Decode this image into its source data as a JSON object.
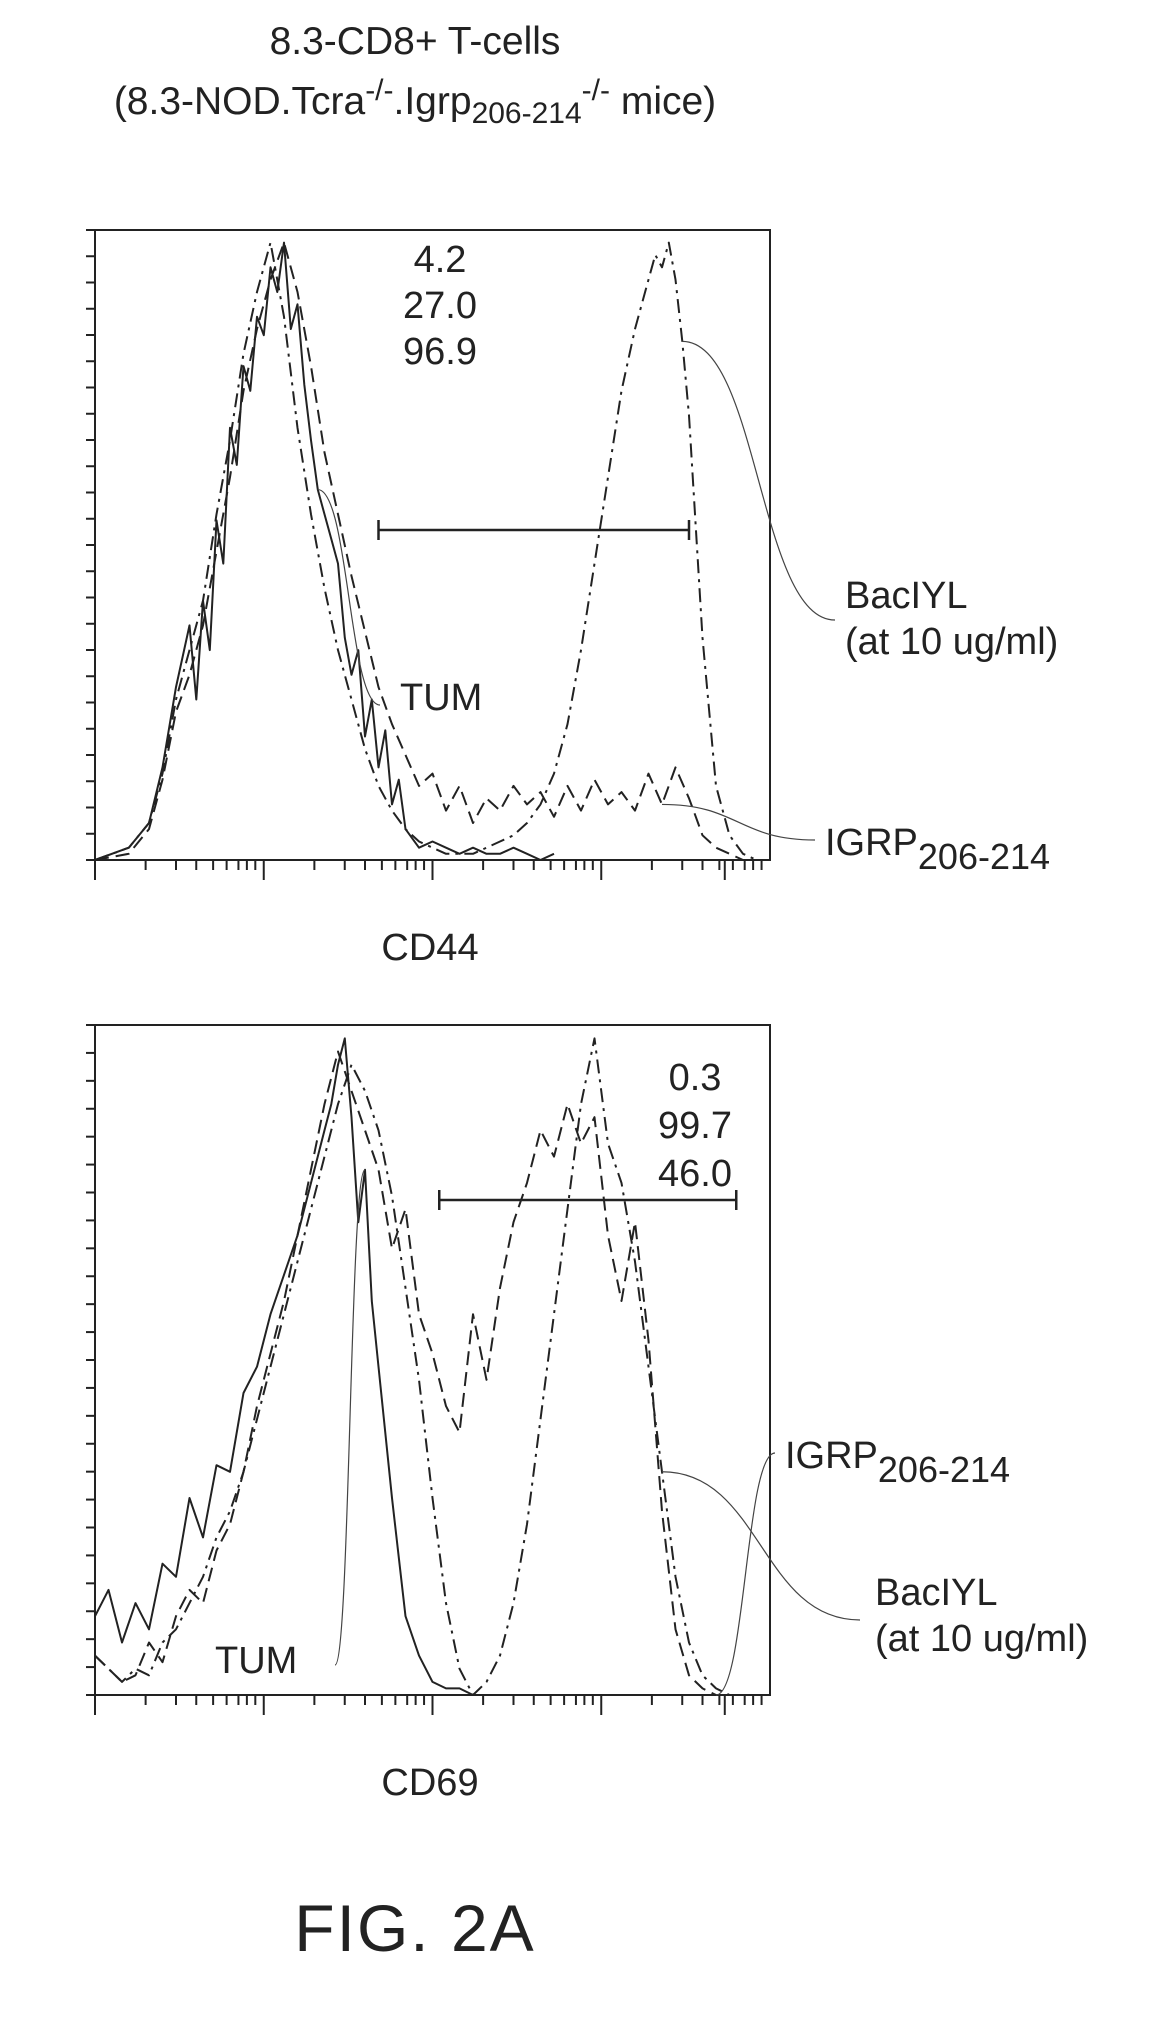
{
  "title": {
    "line1": "8.3-CD8+ T-cells",
    "line2_pre": "(8.3-NOD.Tcra",
    "line2_sup1": "-/-",
    "line2_mid": ".Igrp",
    "line2_sub": "206-214",
    "line2_sup2": "-/-",
    "line2_post": " mice)"
  },
  "figure_label": "FIG. 2A",
  "chart_data": [
    {
      "type": "line",
      "xlabel": "CD44",
      "ylabel": "",
      "xlim": [
        0,
        100
      ],
      "ylim": [
        0,
        100
      ],
      "percentages": [
        "4.2",
        "27.0",
        "96.9"
      ],
      "gate": [
        42,
        88
      ],
      "series": [
        {
          "name": "TUM",
          "style": "solid",
          "x": [
            0,
            5,
            8,
            10,
            12,
            14,
            15,
            16,
            17,
            18,
            19,
            20,
            21,
            22,
            23,
            24,
            25,
            26,
            27,
            28,
            29,
            30,
            31,
            32,
            33,
            34,
            35,
            36,
            37,
            38,
            39,
            40,
            41,
            42,
            43,
            44,
            45,
            46,
            48,
            50,
            52,
            54,
            56,
            58,
            60,
            62,
            64,
            66,
            68
          ],
          "y": [
            0,
            2,
            6,
            15,
            28,
            38,
            26,
            42,
            34,
            55,
            48,
            70,
            64,
            80,
            76,
            88,
            85,
            96,
            92,
            100,
            86,
            90,
            77,
            68,
            60,
            56,
            52,
            48,
            36,
            30,
            34,
            20,
            26,
            15,
            21,
            9,
            13,
            5,
            2,
            3,
            2,
            1,
            2,
            1,
            1,
            2,
            1,
            0,
            1
          ]
        },
        {
          "name": "IGRP",
          "label": "IGRP",
          "label_sub": "206-214",
          "style": "dashed",
          "x": [
            0,
            5,
            8,
            10,
            12,
            14,
            16,
            18,
            20,
            22,
            24,
            26,
            28,
            30,
            32,
            34,
            36,
            38,
            40,
            42,
            44,
            46,
            48,
            50,
            52,
            54,
            56,
            58,
            60,
            62,
            64,
            66,
            68,
            70,
            72,
            74,
            76,
            78,
            80,
            82,
            84,
            85,
            86,
            88,
            89,
            90,
            92,
            94,
            96
          ],
          "y": [
            0,
            1,
            5,
            13,
            24,
            30,
            38,
            50,
            62,
            76,
            86,
            94,
            100,
            92,
            80,
            66,
            56,
            46,
            37,
            28,
            22,
            17,
            12,
            14,
            8,
            12,
            6,
            10,
            8,
            12,
            9,
            11,
            7,
            12,
            8,
            13,
            9,
            11,
            8,
            14,
            9,
            12,
            15,
            10,
            7,
            4,
            2,
            1,
            0
          ]
        },
        {
          "name": "BacIYL",
          "label": "BacIYL",
          "label2": "(at 10 ug/ml)",
          "style": "dashdot",
          "x": [
            0,
            5,
            8,
            10,
            12,
            14,
            16,
            18,
            20,
            22,
            24,
            26,
            28,
            30,
            32,
            34,
            36,
            38,
            40,
            42,
            44,
            46,
            48,
            50,
            52,
            54,
            56,
            58,
            60,
            62,
            64,
            66,
            68,
            70,
            72,
            74,
            76,
            78,
            80,
            82,
            83,
            84,
            85,
            86,
            87,
            88,
            90,
            92,
            94,
            96,
            98
          ],
          "y": [
            0,
            2,
            6,
            14,
            26,
            34,
            42,
            56,
            68,
            82,
            92,
            100,
            88,
            70,
            56,
            44,
            34,
            26,
            18,
            12,
            8,
            5,
            3,
            2,
            1,
            1,
            1,
            2,
            3,
            4,
            6,
            9,
            14,
            22,
            34,
            48,
            62,
            76,
            86,
            94,
            98,
            96,
            100,
            94,
            84,
            72,
            36,
            12,
            4,
            1,
            0
          ]
        }
      ]
    },
    {
      "type": "line",
      "xlabel": "CD69",
      "ylabel": "",
      "xlim": [
        0,
        100
      ],
      "ylim": [
        0,
        100
      ],
      "percentages": [
        "0.3",
        "99.7",
        "46.0"
      ],
      "gate": [
        51,
        95
      ],
      "series": [
        {
          "name": "TUM",
          "label": "TUM",
          "style": "solid",
          "x": [
            0,
            2,
            4,
            6,
            8,
            10,
            12,
            14,
            16,
            18,
            20,
            22,
            24,
            26,
            28,
            30,
            32,
            34,
            35,
            36,
            37,
            38,
            39,
            40,
            41,
            42,
            44,
            46,
            48,
            50,
            52,
            54,
            56,
            58
          ],
          "y": [
            12,
            16,
            8,
            14,
            10,
            20,
            18,
            30,
            24,
            35,
            34,
            46,
            50,
            58,
            64,
            70,
            78,
            86,
            90,
            96,
            100,
            88,
            72,
            80,
            60,
            50,
            30,
            12,
            6,
            2,
            1,
            1,
            0,
            0
          ]
        },
        {
          "name": "IGRP",
          "label": "IGRP",
          "label_sub": "206-214",
          "style": "dashed",
          "x": [
            0,
            2,
            4,
            6,
            8,
            10,
            12,
            14,
            16,
            18,
            20,
            22,
            24,
            26,
            28,
            30,
            32,
            34,
            36,
            38,
            40,
            42,
            44,
            46,
            48,
            50,
            52,
            54,
            56,
            58,
            60,
            62,
            64,
            66,
            68,
            70,
            72,
            74,
            76,
            78,
            80,
            82,
            84,
            86,
            88,
            90,
            92,
            94,
            96
          ],
          "y": [
            6,
            4,
            2,
            3,
            8,
            5,
            12,
            16,
            14,
            22,
            26,
            34,
            44,
            52,
            60,
            70,
            80,
            90,
            98,
            92,
            86,
            80,
            68,
            74,
            58,
            52,
            44,
            40,
            58,
            48,
            62,
            72,
            78,
            86,
            82,
            90,
            84,
            88,
            70,
            60,
            72,
            54,
            28,
            10,
            3,
            1,
            0,
            0,
            0
          ]
        },
        {
          "name": "BacIYL",
          "label": "BacIYL",
          "label2": "(at 10 ug/ml)",
          "style": "dashdot",
          "x": [
            0,
            2,
            4,
            6,
            8,
            10,
            12,
            14,
            16,
            18,
            20,
            22,
            24,
            26,
            28,
            30,
            32,
            34,
            36,
            38,
            40,
            42,
            44,
            46,
            48,
            50,
            52,
            54,
            56,
            58,
            60,
            62,
            64,
            66,
            68,
            70,
            72,
            74,
            76,
            78,
            80,
            82,
            84,
            86,
            88,
            90,
            92,
            94,
            96
          ],
          "y": [
            6,
            4,
            2,
            4,
            3,
            8,
            10,
            14,
            18,
            24,
            28,
            34,
            42,
            50,
            58,
            66,
            74,
            82,
            90,
            96,
            92,
            86,
            76,
            62,
            48,
            30,
            14,
            4,
            0,
            2,
            6,
            14,
            26,
            42,
            58,
            74,
            90,
            100,
            84,
            78,
            66,
            50,
            34,
            18,
            8,
            3,
            1,
            0,
            0
          ]
        }
      ]
    }
  ]
}
